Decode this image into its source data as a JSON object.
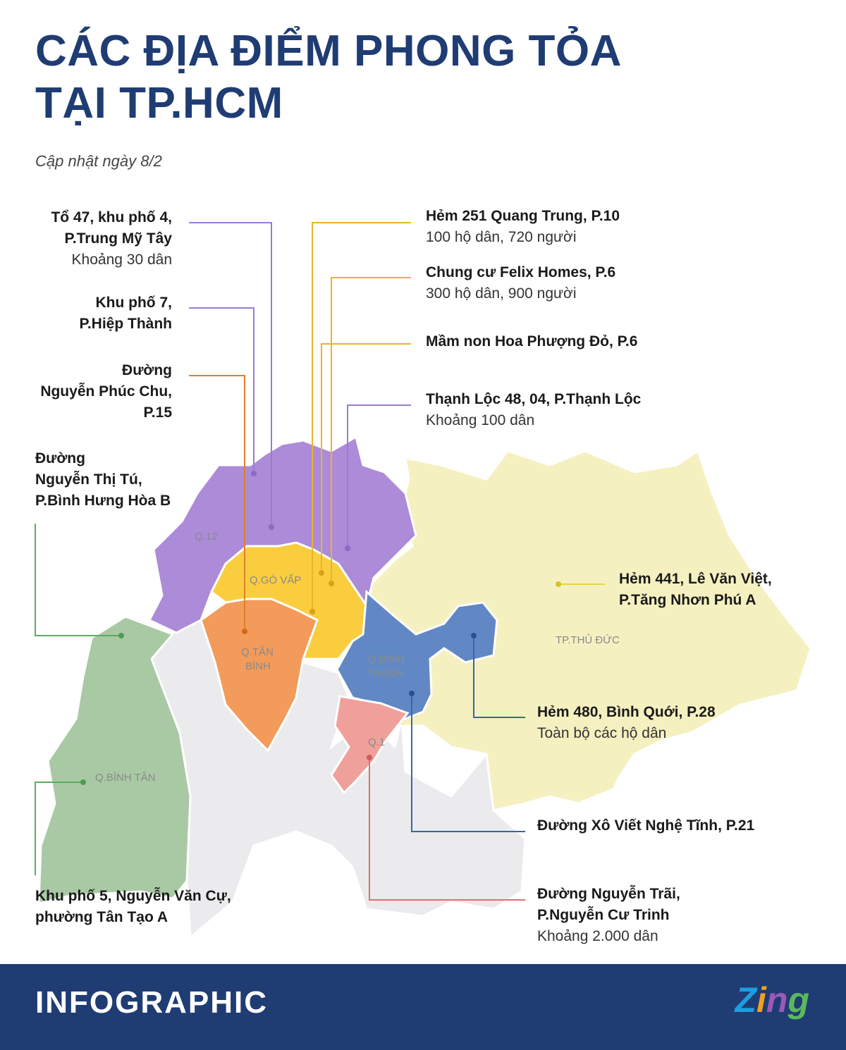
{
  "title_lines": [
    "CÁC ĐỊA ĐIỂM PHONG TỎA",
    "TẠI TP.HCM"
  ],
  "subtitle": "Cập nhật ngày 8/2",
  "districts": {
    "q12": "Q.12",
    "go_vap": "Q.GÒ VẤP",
    "tan_binh_1": "Q.TÂN",
    "tan_binh_2": "BÌNH",
    "binh_thanh_1": "Q.BÌNH",
    "binh_thanh_2": "THẠNH",
    "thu_duc": "TP.THỦ ĐỨC",
    "binh_tan": "Q.BÌNH TÂN",
    "q1": "Q.1"
  },
  "locations": [
    {
      "id": "to47",
      "lines": [
        "Tổ 47, khu phố 4,",
        "P.Trung Mỹ Tây"
      ],
      "note": "Khoảng 30 dân",
      "color": "#9b7bd0"
    },
    {
      "id": "kp7",
      "lines": [
        "Khu phố 7,",
        "P.Hiệp Thành"
      ],
      "note": "",
      "color": "#9b7bd0"
    },
    {
      "id": "npc",
      "lines": [
        "Đường",
        "Nguyễn Phúc Chu,",
        "P.15"
      ],
      "note": "",
      "color": "#e07f2c"
    },
    {
      "id": "ntt",
      "lines": [
        "Đường",
        "Nguyễn Thị Tú,",
        "P.Bình Hưng Hòa B"
      ],
      "note": "",
      "color": "#5cac5c"
    },
    {
      "id": "kp5",
      "lines": [
        "Khu phố 5, Nguyễn Văn Cự,",
        "phường Tân Tạo A"
      ],
      "note": "",
      "color": "#5cac5c"
    },
    {
      "id": "h251",
      "lines": [
        "Hẻm 251 Quang Trung, P.10"
      ],
      "note": "100 hộ dân, 720 người",
      "color": "#e8b52a"
    },
    {
      "id": "felix",
      "lines": [
        "Chung cư Felix Homes, P.6"
      ],
      "note": "300 hộ dân, 900 người",
      "color": "#e8b52a"
    },
    {
      "id": "mamnon",
      "lines": [
        "Mầm non Hoa Phượng Đỏ, P.6"
      ],
      "note": "",
      "color": "#e8b52a"
    },
    {
      "id": "thanhloc",
      "lines": [
        "Thạnh Lộc 48, 04, P.Thạnh Lộc"
      ],
      "note": "Khoảng 100 dân",
      "color": "#9b7bd0"
    },
    {
      "id": "h441",
      "lines": [
        "Hẻm 441, Lê Văn Việt,",
        "P.Tăng Nhơn Phú A"
      ],
      "note": "",
      "color": "#e8d24a"
    },
    {
      "id": "h480",
      "lines": [
        "Hẻm 480, Bình Quới, P.28"
      ],
      "note": "Toàn bộ các hộ dân",
      "color": "#3b64a8"
    },
    {
      "id": "xvnt",
      "lines": [
        "Đường Xô Viết Nghệ Tĩnh, P.21"
      ],
      "note": "",
      "color": "#3b64a8"
    },
    {
      "id": "ntrai",
      "lines": [
        "Đường Nguyễn Trãi,",
        "P.Nguyễn Cư Trinh"
      ],
      "note": "Khoảng 2.000 dân",
      "color": "#e07070"
    }
  ],
  "colors": {
    "title": "#1f3c73",
    "footer_bg": "#1f3c73",
    "q12": "#ac8bd8",
    "go_vap": "#f9cd3e",
    "tan_binh": "#f29b5a",
    "binh_thanh": "#6188c4",
    "thu_duc": "#f5f0c0",
    "binh_tan": "#a9c9a4",
    "q1": "#f0a09a",
    "other": "#ebebed"
  },
  "footer": {
    "brand": "INFOGRAPHIC",
    "logo": "Zing",
    "logo_colors": [
      "#1e9ee0",
      "#f2a020",
      "#9b59b6",
      "#5cb85c"
    ]
  }
}
